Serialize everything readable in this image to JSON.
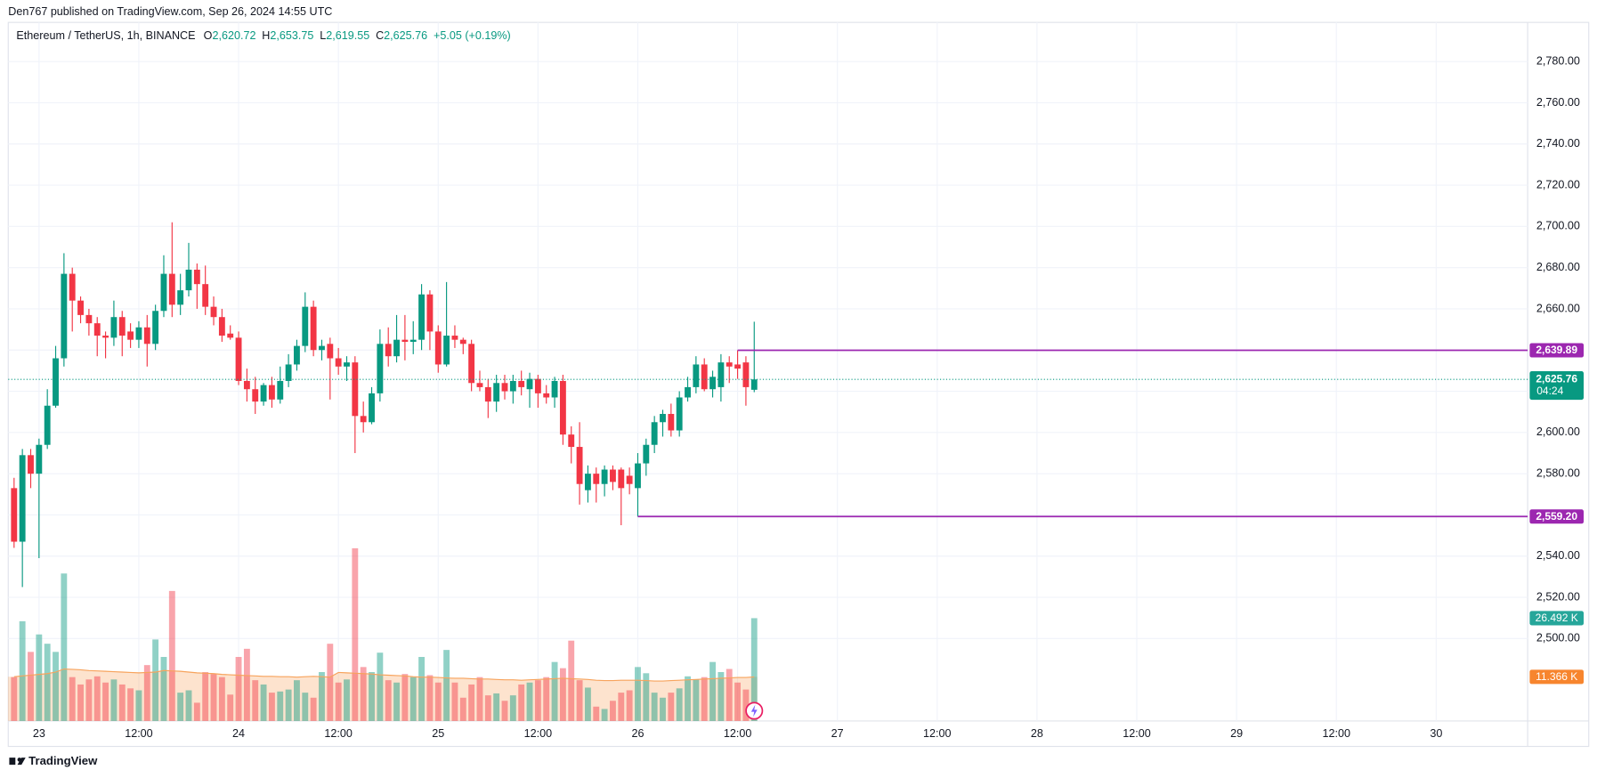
{
  "header": {
    "published": "Den767 published on TradingView.com, Sep 26, 2024 14:55 UTC",
    "symbol": "Ethereum / TetherUS, 1h, BINANCE",
    "ohlc": [
      {
        "key": "O",
        "value": "2,620.72"
      },
      {
        "key": "H",
        "value": "2,653.75"
      },
      {
        "key": "L",
        "value": "2,619.55"
      },
      {
        "key": "C",
        "value": "2,625.76"
      }
    ],
    "change": "+5.05 (+0.19%)"
  },
  "footer": {
    "brand": "TradingView"
  },
  "chart_data": {
    "type": "candlestick",
    "x": [
      -3,
      -2,
      -1,
      0,
      1,
      2,
      3,
      4,
      5,
      6,
      7,
      8,
      9,
      10,
      11,
      12,
      13,
      14,
      15,
      16,
      17,
      18,
      19,
      20,
      21,
      22,
      23,
      24,
      25,
      26,
      27,
      28,
      29,
      30,
      31,
      32,
      33,
      34,
      35,
      36,
      37,
      38,
      39,
      40,
      41,
      42,
      43,
      44,
      45,
      46,
      47,
      48,
      49,
      50,
      51,
      52,
      53,
      54,
      55,
      56,
      57,
      58,
      59,
      60,
      61,
      62,
      63,
      64,
      65,
      66,
      67,
      68,
      69,
      70,
      71,
      72,
      73,
      74,
      75,
      76,
      77,
      78,
      79,
      80,
      81,
      82,
      83,
      84,
      85,
      86
    ],
    "open": [
      2573,
      2547,
      2589,
      2580,
      2594,
      2613,
      2636,
      2677,
      2664,
      2657,
      2653,
      2647,
      2646,
      2656,
      2649,
      2645,
      2651,
      2643,
      2659,
      2677,
      2662,
      2669,
      2679,
      2672,
      2661,
      2656,
      2648,
      2646,
      2625,
      2621,
      2615,
      2623,
      2616,
      2625,
      2633,
      2642,
      2661,
      2640,
      2643,
      2636,
      2632,
      2634,
      2608,
      2605,
      2619,
      2643,
      2637,
      2645,
      2644,
      2645,
      2667,
      2649,
      2633,
      2647,
      2645,
      2643,
      2624,
      2622,
      2615,
      2624,
      2620,
      2625,
      2621,
      2626,
      2619,
      2617,
      2625,
      2599,
      2593,
      2572,
      2580,
      2575,
      2582,
      2582,
      2579,
      2573,
      2585,
      2594,
      2605,
      2609,
      2601,
      2617,
      2622,
      2633,
      2621,
      2622,
      2634,
      2633,
      2634,
      2620.72
    ],
    "high": [
      2578,
      2592,
      2592,
      2597,
      2621,
      2642,
      2687,
      2680,
      2666,
      2660,
      2656,
      2649,
      2664,
      2659,
      2653,
      2654,
      2657,
      2662,
      2686,
      2702,
      2677,
      2692,
      2682,
      2681,
      2666,
      2660,
      2652,
      2649,
      2631,
      2627,
      2624,
      2627,
      2632,
      2638,
      2645,
      2668,
      2664,
      2645,
      2646,
      2641,
      2637,
      2637,
      2615,
      2622,
      2650,
      2651,
      2657,
      2657,
      2654,
      2672,
      2669,
      2652,
      2673,
      2652,
      2646,
      2645,
      2630,
      2626,
      2628,
      2628,
      2628,
      2630,
      2629,
      2628,
      2623,
      2627,
      2628,
      2603,
      2605,
      2584,
      2583,
      2584,
      2584,
      2583,
      2583,
      2590,
      2597,
      2608,
      2611,
      2614,
      2620,
      2627,
      2637,
      2636,
      2630,
      2638,
      2637,
      2639.89,
      2637,
      2653.75
    ],
    "low": [
      2544,
      2525,
      2573,
      2539,
      2592,
      2612,
      2632,
      2649,
      2653,
      2647,
      2637,
      2636,
      2642,
      2637,
      2641,
      2641,
      2632,
      2640,
      2656,
      2656,
      2657,
      2666,
      2660,
      2657,
      2652,
      2644,
      2645,
      2623,
      2615,
      2609,
      2613,
      2612,
      2614,
      2622,
      2630,
      2639,
      2637,
      2635,
      2616,
      2628,
      2625,
      2590,
      2600,
      2604,
      2615,
      2632,
      2634,
      2635,
      2638,
      2640,
      2640,
      2629,
      2632,
      2641,
      2638,
      2620,
      2620,
      2607,
      2610,
      2616,
      2614,
      2618,
      2612,
      2612,
      2614,
      2612,
      2594,
      2585,
      2565,
      2566,
      2566,
      2569,
      2572,
      2555,
      2570,
      2559.2,
      2579,
      2590,
      2598,
      2598,
      2598,
      2615,
      2619,
      2620,
      2617,
      2615,
      2624,
      2626,
      2613,
      2619.55
    ],
    "close": [
      2547,
      2589,
      2580,
      2594,
      2613,
      2636,
      2677,
      2664,
      2657,
      2653,
      2647,
      2646,
      2656,
      2647,
      2645,
      2651,
      2643,
      2659,
      2677,
      2662,
      2669,
      2679,
      2672,
      2661,
      2656,
      2647,
      2646,
      2625,
      2621,
      2615,
      2623,
      2616,
      2625,
      2633,
      2642,
      2661,
      2640,
      2642,
      2636,
      2632,
      2634,
      2608,
      2605,
      2619,
      2643,
      2637,
      2645,
      2644,
      2645,
      2667,
      2649,
      2633,
      2647,
      2645,
      2643,
      2624,
      2622,
      2615,
      2624,
      2620,
      2625,
      2622,
      2626,
      2619,
      2617,
      2625,
      2599,
      2593,
      2575,
      2580,
      2575,
      2582,
      2576,
      2573,
      2575,
      2585,
      2594,
      2605,
      2609,
      2601,
      2617,
      2622,
      2633,
      2621,
      2627,
      2634,
      2632,
      2631,
      2622,
      2625.76
    ],
    "volume": [
      11.3,
      25.7,
      17.8,
      22.3,
      19.9,
      17.8,
      38.0,
      11.3,
      9.4,
      10.7,
      11.5,
      9.9,
      10.7,
      9.4,
      8.4,
      7.9,
      14.4,
      21.0,
      16.5,
      33.5,
      7.3,
      7.9,
      4.7,
      12.6,
      12.1,
      11.3,
      6.8,
      16.5,
      18.6,
      10.5,
      9.4,
      7.3,
      7.6,
      8.1,
      10.5,
      7.3,
      6.0,
      12.6,
      19.9,
      9.9,
      10.7,
      44.5,
      13.9,
      12.6,
      17.6,
      10.5,
      9.9,
      12.1,
      11.3,
      16.5,
      11.8,
      9.9,
      18.3,
      9.9,
      6.0,
      9.4,
      11.3,
      6.6,
      7.1,
      5.2,
      6.6,
      9.4,
      9.9,
      10.5,
      11.3,
      15.2,
      13.6,
      20.7,
      10.5,
      8.6,
      3.7,
      3.1,
      5.2,
      7.3,
      7.9,
      13.9,
      12.3,
      7.3,
      6.0,
      7.3,
      8.4,
      11.5,
      10.7,
      11.3,
      15.2,
      12.6,
      13.4,
      9.9,
      8.1,
      26.492
    ],
    "volume_ma": [
      11.4,
      11.6,
      11.8,
      12.0,
      12.2,
      12.6,
      13.4,
      13.3,
      13.2,
      13.0,
      12.9,
      12.8,
      12.7,
      12.6,
      12.5,
      12.4,
      12.5,
      12.6,
      13.0,
      12.9,
      12.8,
      12.6,
      12.4,
      12.3,
      12.2,
      12.0,
      11.9,
      11.8,
      11.7,
      11.6,
      11.5,
      11.5,
      11.4,
      11.4,
      11.3,
      11.4,
      11.5,
      11.4,
      11.3,
      12.5,
      12.4,
      12.3,
      12.2,
      12.1,
      11.9,
      11.8,
      11.7,
      11.6,
      11.4,
      11.3,
      11.3,
      11.2,
      11.1,
      11.0,
      11.0,
      10.9,
      10.8,
      10.8,
      10.7,
      10.6,
      10.6,
      10.5,
      10.6,
      10.7,
      10.8,
      10.9,
      11.0,
      10.9,
      10.8,
      10.7,
      10.5,
      10.4,
      10.4,
      10.5,
      10.5,
      10.5,
      10.4,
      10.3,
      10.3,
      10.4,
      10.5,
      10.6,
      10.7,
      10.8,
      10.9,
      11.0,
      11.1,
      11.2,
      11.2,
      11.366
    ],
    "volume_label": {
      "value": 26.492,
      "label": "26.492 K"
    },
    "volume_ma_label": {
      "value": 11.366,
      "label": "11.366 K"
    },
    "volume_lim": [
      0,
      180
    ],
    "up_color": "#089981",
    "down_color": "#f23645",
    "volume_ma_color": "#f7a35c",
    "xlim": [
      -3.7,
      179
    ],
    "xticks": [
      {
        "value": 0,
        "label": "23"
      },
      {
        "value": 12,
        "label": "12:00"
      },
      {
        "value": 24,
        "label": "24"
      },
      {
        "value": 36,
        "label": "12:00"
      },
      {
        "value": 48,
        "label": "25"
      },
      {
        "value": 60,
        "label": "12:00"
      },
      {
        "value": 72,
        "label": "26"
      },
      {
        "value": 84,
        "label": "12:00"
      },
      {
        "value": 96,
        "label": "27"
      },
      {
        "value": 108,
        "label": "12:00"
      },
      {
        "value": 120,
        "label": "28"
      },
      {
        "value": 132,
        "label": "12:00"
      },
      {
        "value": 144,
        "label": "29"
      },
      {
        "value": 156,
        "label": "12:00"
      },
      {
        "value": 168,
        "label": "30"
      }
    ],
    "ylim": [
      2460,
      2799
    ],
    "yticks": [
      {
        "value": 2500,
        "label": "2,500.00"
      },
      {
        "value": 2520,
        "label": "2,520.00"
      },
      {
        "value": 2540,
        "label": "2,540.00"
      },
      {
        "value": 2560,
        "label": "2,560.00"
      },
      {
        "value": 2580,
        "label": "2,580.00"
      },
      {
        "value": 2600,
        "label": "2,600.00"
      },
      {
        "value": 2620,
        "label": "2,620.00"
      },
      {
        "value": 2640,
        "label": "2,640.00"
      },
      {
        "value": 2660,
        "label": "2,660.00"
      },
      {
        "value": 2680,
        "label": "2,680.00"
      },
      {
        "value": 2700,
        "label": "2,700.00"
      },
      {
        "value": 2720,
        "label": "2,720.00"
      },
      {
        "value": 2740,
        "label": "2,740.00"
      },
      {
        "value": 2760,
        "label": "2,760.00"
      },
      {
        "value": 2780,
        "label": "2,780.00"
      }
    ],
    "grid": true,
    "levels": [
      {
        "value": 2639.89,
        "label": "2,639.89",
        "x_from": 84
      },
      {
        "value": 2559.2,
        "label": "2,559.20",
        "x_from": 72
      }
    ],
    "level_color": "#9c27b0",
    "last_price": {
      "value": 2625.76,
      "label": "2,625.76",
      "countdown": "04:24"
    }
  }
}
